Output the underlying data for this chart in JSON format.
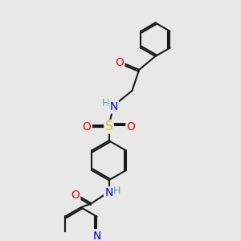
{
  "bg_color": "#e8e8e8",
  "bond_color": "#1a1a1a",
  "bond_width": 1.5,
  "atom_colors": {
    "O": "#ff0000",
    "N": "#0000ff",
    "S": "#cccc00",
    "H": "#5f9ea0",
    "C": "#1a1a1a"
  },
  "font_size": 9
}
